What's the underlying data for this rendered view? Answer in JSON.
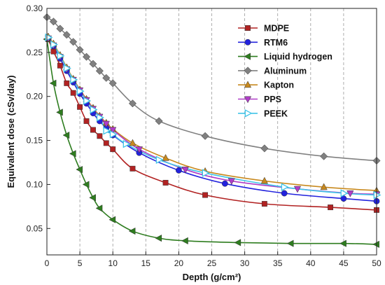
{
  "chart_data": {
    "type": "line",
    "title": "",
    "xlabel": "Depth (g/cm²)",
    "ylabel": "Equivalent dose (cSv/day)",
    "xlim": [
      0,
      50
    ],
    "ylim": [
      0.02,
      0.3
    ],
    "xticks": [
      "0",
      "5",
      "10",
      "15",
      "20",
      "25",
      "30",
      "35",
      "40",
      "45",
      "50"
    ],
    "yticks": [
      "0.05",
      "0.10",
      "0.15",
      "0.20",
      "0.25",
      "0.30"
    ],
    "grid": "vertical dashed",
    "legend_position": "top-right",
    "series": [
      {
        "name": "MDPE",
        "color": "#b22222",
        "marker": "square",
        "points": [
          [
            0.2,
            0.265
          ],
          [
            1,
            0.251
          ],
          [
            2,
            0.235
          ],
          [
            3,
            0.215
          ],
          [
            4,
            0.204
          ],
          [
            5,
            0.188
          ],
          [
            6,
            0.172
          ],
          [
            7,
            0.162
          ],
          [
            8,
            0.155
          ],
          [
            9,
            0.147
          ],
          [
            10,
            0.14
          ],
          [
            13,
            0.118
          ],
          [
            18,
            0.102
          ],
          [
            24,
            0.088
          ],
          [
            33,
            0.078
          ],
          [
            43,
            0.074
          ],
          [
            50,
            0.071
          ]
        ]
      },
      {
        "name": "RTM6",
        "color": "#2222dd",
        "marker": "circle",
        "points": [
          [
            0.2,
            0.266
          ],
          [
            1,
            0.257
          ],
          [
            2,
            0.243
          ],
          [
            3,
            0.229
          ],
          [
            4,
            0.216
          ],
          [
            5,
            0.203
          ],
          [
            6,
            0.192
          ],
          [
            7,
            0.181
          ],
          [
            8,
            0.172
          ],
          [
            9,
            0.164
          ],
          [
            10,
            0.156
          ],
          [
            14,
            0.136
          ],
          [
            20,
            0.116
          ],
          [
            27,
            0.101
          ],
          [
            36,
            0.09
          ],
          [
            45,
            0.084
          ],
          [
            50,
            0.081
          ]
        ]
      },
      {
        "name": "Liquid hydrogen",
        "color": "#2e7d1f",
        "marker": "triangle-left",
        "points": [
          [
            0,
            0.265
          ],
          [
            1,
            0.215
          ],
          [
            2,
            0.182
          ],
          [
            3,
            0.156
          ],
          [
            4,
            0.135
          ],
          [
            5,
            0.117
          ],
          [
            6,
            0.1
          ],
          [
            7,
            0.085
          ],
          [
            8,
            0.073
          ],
          [
            10,
            0.06
          ],
          [
            13,
            0.047
          ],
          [
            17,
            0.039
          ],
          [
            21,
            0.036
          ],
          [
            29,
            0.034
          ],
          [
            37,
            0.033
          ],
          [
            45,
            0.033
          ],
          [
            50,
            0.032
          ]
        ]
      },
      {
        "name": "Aluminum",
        "color": "#808080",
        "marker": "diamond",
        "points": [
          [
            0,
            0.29
          ],
          [
            1,
            0.285
          ],
          [
            2,
            0.277
          ],
          [
            3,
            0.27
          ],
          [
            4,
            0.262
          ],
          [
            5,
            0.253
          ],
          [
            6,
            0.245
          ],
          [
            7,
            0.237
          ],
          [
            8,
            0.229
          ],
          [
            9,
            0.221
          ],
          [
            10,
            0.215
          ],
          [
            13,
            0.192
          ],
          [
            17,
            0.172
          ],
          [
            24,
            0.155
          ],
          [
            33,
            0.141
          ],
          [
            42,
            0.132
          ],
          [
            50,
            0.127
          ]
        ]
      },
      {
        "name": "Kapton",
        "color": "#c8891e",
        "marker": "triangle-up",
        "points": [
          [
            0.2,
            0.268
          ],
          [
            1,
            0.26
          ],
          [
            2,
            0.247
          ],
          [
            3,
            0.233
          ],
          [
            4,
            0.22
          ],
          [
            5,
            0.208
          ],
          [
            6,
            0.197
          ],
          [
            7,
            0.187
          ],
          [
            8,
            0.178
          ],
          [
            9,
            0.17
          ],
          [
            10,
            0.163
          ],
          [
            13,
            0.147
          ],
          [
            18,
            0.13
          ],
          [
            24,
            0.115
          ],
          [
            33,
            0.104
          ],
          [
            42,
            0.097
          ],
          [
            50,
            0.093
          ]
        ]
      },
      {
        "name": "PPS",
        "color": "#b03cc8",
        "marker": "triangle-down",
        "points": [
          [
            0.2,
            0.266
          ],
          [
            1,
            0.258
          ],
          [
            2,
            0.245
          ],
          [
            3,
            0.231
          ],
          [
            4,
            0.219
          ],
          [
            5,
            0.207
          ],
          [
            6,
            0.196
          ],
          [
            7,
            0.186
          ],
          [
            8,
            0.177
          ],
          [
            9,
            0.169
          ],
          [
            10,
            0.162
          ],
          [
            14,
            0.14
          ],
          [
            21,
            0.117
          ],
          [
            28,
            0.104
          ],
          [
            38,
            0.095
          ],
          [
            46,
            0.09
          ],
          [
            50,
            0.089
          ]
        ]
      },
      {
        "name": "PEEK",
        "color": "#40c4e8",
        "marker": "triangle-right",
        "points": [
          [
            0.2,
            0.267
          ],
          [
            1,
            0.259
          ],
          [
            2,
            0.246
          ],
          [
            3,
            0.232
          ],
          [
            4,
            0.219
          ],
          [
            5,
            0.206
          ],
          [
            6,
            0.195
          ],
          [
            7,
            0.185
          ],
          [
            8,
            0.176
          ],
          [
            9,
            0.161
          ],
          [
            10,
            0.157
          ],
          [
            12,
            0.146
          ],
          [
            17,
            0.128
          ],
          [
            24,
            0.113
          ],
          [
            36,
            0.097
          ],
          [
            45,
            0.09
          ],
          [
            50,
            0.088
          ]
        ]
      }
    ]
  }
}
